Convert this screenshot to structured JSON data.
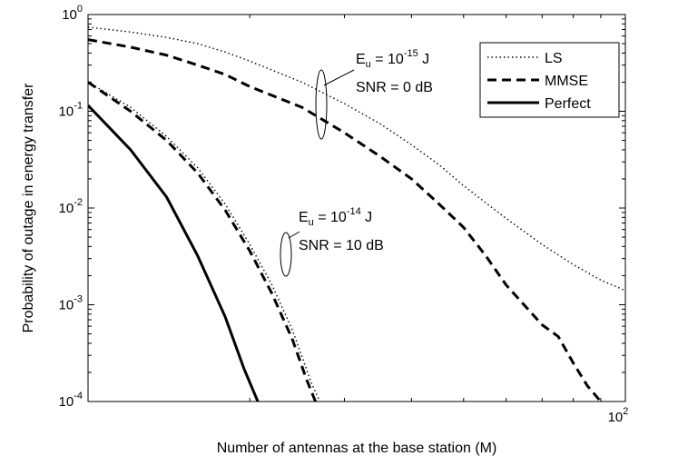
{
  "chart_data": {
    "type": "line",
    "xlabel": "Number of antennas at the base station (M)",
    "ylabel": "Probability of outage in energy transfer",
    "xscale": "log",
    "yscale": "log",
    "xlim": [
      10,
      100
    ],
    "ylim": [
      0.0001,
      1
    ],
    "grid": false,
    "x_ticks": [
      {
        "value": 100,
        "base": "10",
        "exp": "2"
      }
    ],
    "y_ticks": [
      {
        "value": 1,
        "base": "10",
        "exp": "0"
      },
      {
        "value": 0.1,
        "base": "10",
        "exp": "-1"
      },
      {
        "value": 0.01,
        "base": "10",
        "exp": "-2"
      },
      {
        "value": 0.001,
        "base": "10",
        "exp": "-3"
      },
      {
        "value": 0.0001,
        "base": "10",
        "exp": "-4"
      }
    ],
    "legend": {
      "position": "top-right",
      "entries": [
        {
          "label": "LS",
          "style": "dotted"
        },
        {
          "label": "MMSE",
          "style": "dashed"
        },
        {
          "label": "Perfect",
          "style": "solid"
        }
      ]
    },
    "series": [
      {
        "label": "LS",
        "group": "Eu=1e-15, SNR=0dB",
        "style": "dotted",
        "points": [
          [
            10,
            0.74
          ],
          [
            12,
            0.66
          ],
          [
            14,
            0.58
          ],
          [
            16,
            0.5
          ],
          [
            18,
            0.41
          ],
          [
            20,
            0.33
          ],
          [
            25,
            0.2
          ],
          [
            30,
            0.12
          ],
          [
            35,
            0.074
          ],
          [
            40,
            0.045
          ],
          [
            45,
            0.028
          ],
          [
            50,
            0.017
          ],
          [
            60,
            0.0078
          ],
          [
            70,
            0.0042
          ],
          [
            80,
            0.0026
          ],
          [
            90,
            0.0018
          ],
          [
            100,
            0.0014
          ]
        ]
      },
      {
        "label": "MMSE",
        "group": "Eu=1e-15, SNR=0dB",
        "style": "dashed",
        "points": [
          [
            10,
            0.55
          ],
          [
            12,
            0.46
          ],
          [
            14,
            0.38
          ],
          [
            16,
            0.3
          ],
          [
            18,
            0.24
          ],
          [
            20,
            0.18
          ],
          [
            25,
            0.11
          ],
          [
            30,
            0.06
          ],
          [
            35,
            0.034
          ],
          [
            40,
            0.02
          ],
          [
            45,
            0.011
          ],
          [
            50,
            0.0063
          ],
          [
            55,
            0.0032
          ],
          [
            60,
            0.0016
          ],
          [
            70,
            0.00062
          ],
          [
            75,
            0.00047
          ],
          [
            80,
            0.00025
          ],
          [
            85,
            0.000145
          ],
          [
            90,
            0.0001
          ]
        ]
      },
      {
        "label": "LS",
        "group": "Eu=1e-14, SNR=10dB",
        "style": "dotted",
        "points": [
          [
            10,
            0.2
          ],
          [
            12,
            0.11
          ],
          [
            14,
            0.055
          ],
          [
            16,
            0.026
          ],
          [
            18,
            0.011
          ],
          [
            20,
            0.0042
          ],
          [
            22,
            0.0016
          ],
          [
            24,
            0.00055
          ],
          [
            26,
            0.00016
          ],
          [
            27,
            0.0001
          ]
        ]
      },
      {
        "label": "MMSE",
        "group": "Eu=1e-14, SNR=10dB",
        "style": "dashed",
        "points": [
          [
            10,
            0.2
          ],
          [
            12,
            0.1
          ],
          [
            14,
            0.05
          ],
          [
            16,
            0.023
          ],
          [
            18,
            0.0095
          ],
          [
            20,
            0.0036
          ],
          [
            22,
            0.0013
          ],
          [
            24,
            0.00044
          ],
          [
            25.5,
            0.00017
          ],
          [
            26.5,
            0.0001
          ]
        ]
      },
      {
        "label": "Perfect",
        "group": "Eu=1e-14, SNR=10dB",
        "style": "solid",
        "points": [
          [
            10,
            0.115
          ],
          [
            12,
            0.04
          ],
          [
            14,
            0.013
          ],
          [
            16,
            0.0032
          ],
          [
            18,
            0.00075
          ],
          [
            19.5,
            0.00022
          ],
          [
            20.7,
            0.0001
          ]
        ]
      }
    ],
    "annotations": [
      {
        "id": "annot-eu-low",
        "eu_prefix": "E",
        "eu_sub": "u",
        "eu_eq": " = 10",
        "eu_exp": "-15",
        "eu_unit": " J",
        "snr": "SNR = 0 dB"
      },
      {
        "id": "annot-eu-high",
        "eu_prefix": "E",
        "eu_sub": "u",
        "eu_eq": " = 10",
        "eu_exp": "-14",
        "eu_unit": " J",
        "snr": "SNR = 10 dB"
      }
    ]
  }
}
